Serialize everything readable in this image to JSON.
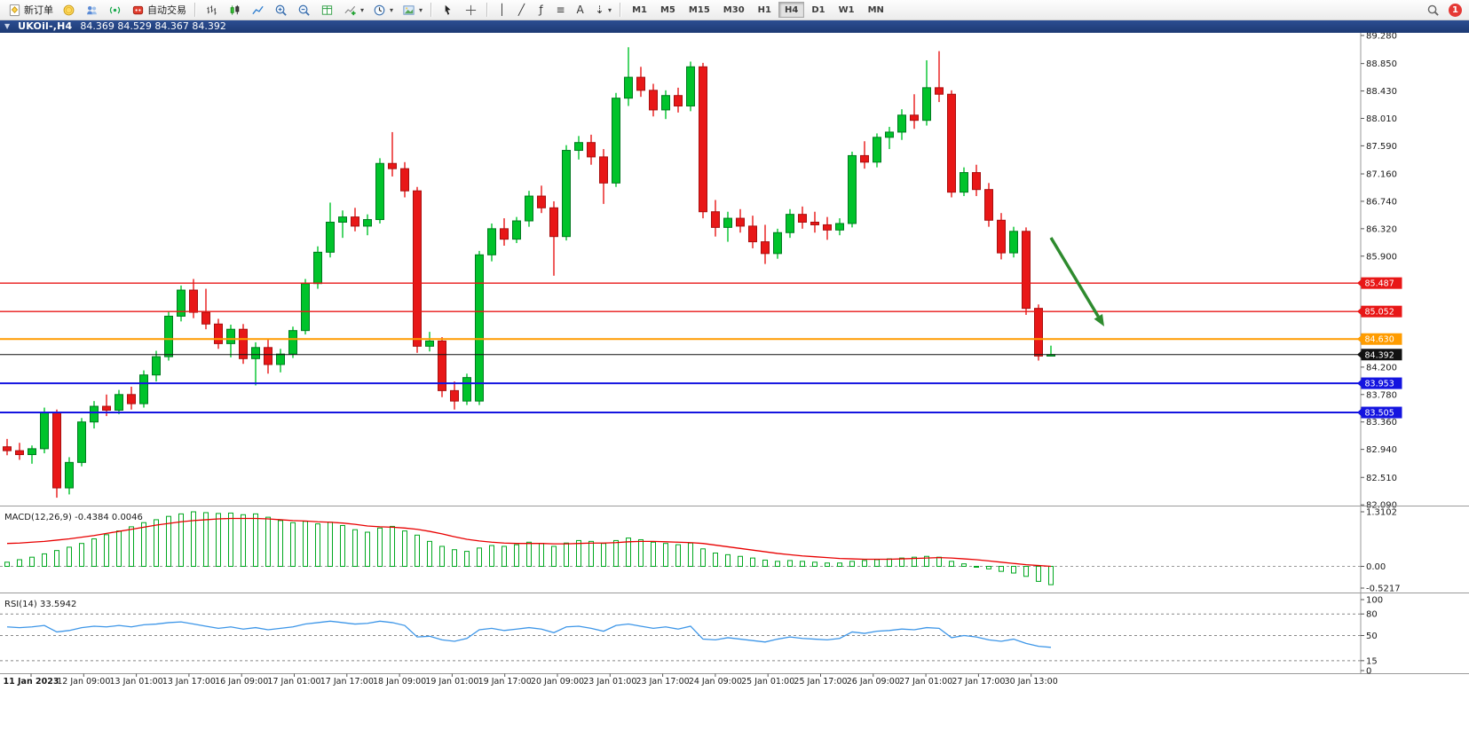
{
  "toolbar": {
    "timeframes": [
      "M1",
      "M5",
      "M15",
      "M30",
      "H1",
      "H4",
      "D1",
      "W1",
      "MN"
    ],
    "active_timeframe": "H4",
    "notification_count": "1",
    "sections": [
      {
        "items": [
          {
            "name": "new-order-button",
            "icon": "new-order-icon",
            "label": "新订单"
          },
          {
            "name": "market-watch-button",
            "icon": "coin-icon"
          },
          {
            "name": "accounts-button",
            "icon": "users-icon"
          },
          {
            "name": "signals-button",
            "icon": "signal-icon"
          },
          {
            "name": "autotrading-button",
            "icon": "autotrading-icon",
            "label": "自动交易"
          }
        ]
      },
      {
        "sep": true
      },
      {
        "items": [
          {
            "name": "bar-chart-button",
            "icon": "bars-icon"
          },
          {
            "name": "candlestick-chart-button",
            "icon": "candles-icon"
          },
          {
            "name": "line-chart-button",
            "icon": "linechart-icon"
          }
        ]
      },
      {
        "items": [
          {
            "name": "zoom-in-button",
            "icon": "zoom-in-icon"
          },
          {
            "name": "zoom-out-button",
            "icon": "zoom-out-icon"
          },
          {
            "name": "tile-windows-button",
            "icon": "grid-icon"
          }
        ]
      },
      {
        "items": [
          {
            "name": "indicators-button",
            "icon": "indicator-add-icon",
            "caret": true
          },
          {
            "name": "periods-button",
            "icon": "clock-icon",
            "caret": true
          },
          {
            "name": "templates-button",
            "icon": "template-icon",
            "caret": true
          }
        ]
      },
      {
        "sep": true
      },
      {
        "items": [
          {
            "name": "cursor-button",
            "icon": "cursor-icon"
          },
          {
            "name": "crosshair-button",
            "icon": "crosshair-icon"
          }
        ]
      },
      {
        "sep": true
      },
      {
        "items": [
          {
            "name": "vertical-line-button",
            "glyph": "│"
          },
          {
            "name": "trendline-button",
            "glyph": "╱"
          },
          {
            "name": "fibonacci-button",
            "glyph": "ƒ"
          },
          {
            "name": "channel-button",
            "glyph": "≡"
          },
          {
            "name": "text-button",
            "glyph": "A"
          },
          {
            "name": "arrows-button",
            "glyph": "⇣",
            "caret": true
          }
        ]
      },
      {
        "sep": true
      },
      {
        "timeframes": true
      },
      {
        "spacer": true
      },
      {
        "items": [
          {
            "name": "search-button",
            "icon": "search-icon"
          },
          {
            "name": "notifications-badge",
            "badge": true
          }
        ]
      }
    ]
  },
  "chart": {
    "title": {
      "symbol_period": "UKOil-,H4",
      "ohlc": "84.369 84.529 84.367 84.392"
    }
  },
  "chart_data": {
    "type": "candlestick",
    "symbol": "UKOil-",
    "timeframe": "H4",
    "current_ohlc": {
      "open": 84.369,
      "high": 84.529,
      "low": 84.367,
      "close": 84.392
    },
    "y_axis": {
      "min": 82.09,
      "max": 89.28,
      "gridline_labels": [
        "89.280",
        "88.850",
        "88.430",
        "88.010",
        "87.590",
        "87.160",
        "86.740",
        "86.320",
        "85.900",
        "84.200",
        "83.780",
        "83.360",
        "82.940",
        "82.510",
        "82.090"
      ]
    },
    "x_axis": {
      "labels": [
        "11 Jan 2023",
        "12 Jan 09:00",
        "13 Jan 01:00",
        "13 Jan 17:00",
        "16 Jan 09:00",
        "17 Jan 01:00",
        "17 Jan 17:00",
        "18 Jan 09:00",
        "19 Jan 01:00",
        "19 Jan 17:00",
        "20 Jan 09:00",
        "23 Jan 01:00",
        "23 Jan 17:00",
        "24 Jan 09:00",
        "25 Jan 01:00",
        "25 Jan 17:00",
        "26 Jan 09:00",
        "27 Jan 01:00",
        "27 Jan 17:00",
        "30 Jan 13:00"
      ]
    },
    "horizontal_lines": [
      {
        "label": "85.487",
        "price": 85.487,
        "color": "#e81717",
        "width": 1.4
      },
      {
        "label": "85.052",
        "price": 85.052,
        "color": "#e81717",
        "width": 1.4
      },
      {
        "label": "84.630",
        "price": 84.63,
        "color": "#ff9c00",
        "width": 2
      },
      {
        "label": "84.392",
        "price": 84.392,
        "color": "#111111",
        "width": 1
      },
      {
        "label": "83.953",
        "price": 83.953,
        "color": "#1414e0",
        "width": 2
      },
      {
        "label": "83.505",
        "price": 83.505,
        "color": "#1414e0",
        "width": 2
      }
    ],
    "candles": [
      [
        82.98,
        83.1,
        82.85,
        82.92
      ],
      [
        82.92,
        83.04,
        82.78,
        82.86
      ],
      [
        82.86,
        83.0,
        82.72,
        82.95
      ],
      [
        82.95,
        83.58,
        82.88,
        83.5
      ],
      [
        83.5,
        83.55,
        82.2,
        82.35
      ],
      [
        82.35,
        82.82,
        82.25,
        82.74
      ],
      [
        82.74,
        83.42,
        82.68,
        83.36
      ],
      [
        83.36,
        83.68,
        83.26,
        83.6
      ],
      [
        83.6,
        83.78,
        83.45,
        83.54
      ],
      [
        83.54,
        83.85,
        83.48,
        83.78
      ],
      [
        83.78,
        83.9,
        83.55,
        83.64
      ],
      [
        83.64,
        84.15,
        83.58,
        84.08
      ],
      [
        84.08,
        84.45,
        83.98,
        84.36
      ],
      [
        84.36,
        85.05,
        84.3,
        84.98
      ],
      [
        84.98,
        85.45,
        84.9,
        85.38
      ],
      [
        85.38,
        85.55,
        84.95,
        85.04
      ],
      [
        85.04,
        85.4,
        84.78,
        84.86
      ],
      [
        84.86,
        84.94,
        84.48,
        84.56
      ],
      [
        84.56,
        84.85,
        84.35,
        84.78
      ],
      [
        84.78,
        84.86,
        84.25,
        84.33
      ],
      [
        84.33,
        84.58,
        83.92,
        84.5
      ],
      [
        84.5,
        84.62,
        84.1,
        84.24
      ],
      [
        84.24,
        84.48,
        84.12,
        84.4
      ],
      [
        84.4,
        84.82,
        84.34,
        84.76
      ],
      [
        84.76,
        85.55,
        84.7,
        85.48
      ],
      [
        85.48,
        86.05,
        85.4,
        85.96
      ],
      [
        85.96,
        86.72,
        85.88,
        86.42
      ],
      [
        86.42,
        86.6,
        86.18,
        86.5
      ],
      [
        86.5,
        86.64,
        86.28,
        86.36
      ],
      [
        86.36,
        86.54,
        86.22,
        86.46
      ],
      [
        86.46,
        87.4,
        86.4,
        87.32
      ],
      [
        87.32,
        87.8,
        87.12,
        87.24
      ],
      [
        87.24,
        87.34,
        86.8,
        86.9
      ],
      [
        86.9,
        86.96,
        84.42,
        84.52
      ],
      [
        84.52,
        84.74,
        84.44,
        84.6
      ],
      [
        84.6,
        84.66,
        83.74,
        83.84
      ],
      [
        83.84,
        83.98,
        83.55,
        83.68
      ],
      [
        83.68,
        84.1,
        83.62,
        84.04
      ],
      [
        83.68,
        85.98,
        83.62,
        85.92
      ],
      [
        85.92,
        86.4,
        85.82,
        86.32
      ],
      [
        86.32,
        86.48,
        86.06,
        86.16
      ],
      [
        86.16,
        86.5,
        86.1,
        86.44
      ],
      [
        86.44,
        86.9,
        86.35,
        86.82
      ],
      [
        86.82,
        86.98,
        86.56,
        86.64
      ],
      [
        86.64,
        86.74,
        85.6,
        86.2
      ],
      [
        86.2,
        87.6,
        86.14,
        87.52
      ],
      [
        87.52,
        87.74,
        87.38,
        87.64
      ],
      [
        87.64,
        87.76,
        87.3,
        87.42
      ],
      [
        87.42,
        87.54,
        86.7,
        87.02
      ],
      [
        87.02,
        88.4,
        86.96,
        88.32
      ],
      [
        88.32,
        89.1,
        88.2,
        88.64
      ],
      [
        88.64,
        88.8,
        88.34,
        88.44
      ],
      [
        88.44,
        88.54,
        88.04,
        88.14
      ],
      [
        88.14,
        88.44,
        88.0,
        88.36
      ],
      [
        88.36,
        88.48,
        88.1,
        88.2
      ],
      [
        88.2,
        88.88,
        88.12,
        88.8
      ],
      [
        88.8,
        88.86,
        86.48,
        86.58
      ],
      [
        86.58,
        86.76,
        86.2,
        86.34
      ],
      [
        86.34,
        86.58,
        86.12,
        86.48
      ],
      [
        86.48,
        86.62,
        86.26,
        86.36
      ],
      [
        86.36,
        86.52,
        86.02,
        86.12
      ],
      [
        86.12,
        86.38,
        85.78,
        85.94
      ],
      [
        85.94,
        86.32,
        85.86,
        86.26
      ],
      [
        86.26,
        86.62,
        86.18,
        86.54
      ],
      [
        86.54,
        86.66,
        86.32,
        86.42
      ],
      [
        86.42,
        86.58,
        86.26,
        86.38
      ],
      [
        86.38,
        86.5,
        86.15,
        86.3
      ],
      [
        86.3,
        86.48,
        86.22,
        86.4
      ],
      [
        86.4,
        87.5,
        86.34,
        87.44
      ],
      [
        87.44,
        87.66,
        87.24,
        87.34
      ],
      [
        87.34,
        87.78,
        87.26,
        87.72
      ],
      [
        87.72,
        87.88,
        87.54,
        87.8
      ],
      [
        87.8,
        88.15,
        87.68,
        88.06
      ],
      [
        88.06,
        88.38,
        87.85,
        87.98
      ],
      [
        87.98,
        88.9,
        87.9,
        88.48
      ],
      [
        88.48,
        89.04,
        88.26,
        88.38
      ],
      [
        88.38,
        88.44,
        86.8,
        86.88
      ],
      [
        86.88,
        87.26,
        86.82,
        87.18
      ],
      [
        87.18,
        87.3,
        86.82,
        86.92
      ],
      [
        86.92,
        87.02,
        86.35,
        86.45
      ],
      [
        86.45,
        86.56,
        85.85,
        85.95
      ],
      [
        85.95,
        86.35,
        85.88,
        86.28
      ],
      [
        86.28,
        86.34,
        85.0,
        85.1
      ],
      [
        85.1,
        85.16,
        84.3,
        84.37
      ],
      [
        84.369,
        84.529,
        84.367,
        84.392
      ]
    ],
    "indicators": {
      "macd": {
        "label": "MACD(12,26,9)",
        "value_text": "-0.4384 0.0046",
        "axis_labels": [
          "1.3102",
          "0.00",
          "-0.5217"
        ],
        "histogram_color": "#00a81f",
        "signal_color": "#e80000",
        "histogram": [
          0.1,
          0.16,
          0.22,
          0.3,
          0.38,
          0.46,
          0.55,
          0.66,
          0.76,
          0.85,
          0.95,
          1.05,
          1.12,
          1.2,
          1.26,
          1.31,
          1.29,
          1.27,
          1.28,
          1.24,
          1.26,
          1.18,
          1.1,
          1.05,
          1.08,
          1.02,
          1.06,
          0.98,
          0.88,
          0.82,
          0.92,
          0.96,
          0.85,
          0.75,
          0.6,
          0.48,
          0.4,
          0.36,
          0.44,
          0.5,
          0.48,
          0.52,
          0.58,
          0.55,
          0.48,
          0.56,
          0.62,
          0.6,
          0.55,
          0.62,
          0.68,
          0.64,
          0.58,
          0.55,
          0.52,
          0.56,
          0.42,
          0.32,
          0.28,
          0.24,
          0.2,
          0.15,
          0.12,
          0.14,
          0.12,
          0.1,
          0.08,
          0.08,
          0.12,
          0.14,
          0.16,
          0.18,
          0.2,
          0.22,
          0.24,
          0.22,
          0.12,
          0.06,
          0.0,
          -0.06,
          -0.12,
          -0.16,
          -0.24,
          -0.36,
          -0.44
        ],
        "signal": [
          0.55,
          0.56,
          0.58,
          0.6,
          0.63,
          0.66,
          0.7,
          0.74,
          0.79,
          0.84,
          0.89,
          0.94,
          0.99,
          1.03,
          1.07,
          1.1,
          1.12,
          1.14,
          1.15,
          1.15,
          1.15,
          1.14,
          1.12,
          1.1,
          1.09,
          1.07,
          1.06,
          1.04,
          1.01,
          0.97,
          0.95,
          0.94,
          0.92,
          0.89,
          0.84,
          0.78,
          0.71,
          0.65,
          0.61,
          0.58,
          0.56,
          0.55,
          0.55,
          0.55,
          0.54,
          0.54,
          0.55,
          0.56,
          0.56,
          0.57,
          0.59,
          0.6,
          0.6,
          0.59,
          0.58,
          0.57,
          0.55,
          0.51,
          0.47,
          0.43,
          0.39,
          0.35,
          0.31,
          0.28,
          0.25,
          0.23,
          0.21,
          0.19,
          0.18,
          0.17,
          0.17,
          0.17,
          0.18,
          0.19,
          0.2,
          0.21,
          0.2,
          0.18,
          0.16,
          0.13,
          0.1,
          0.07,
          0.04,
          0.02,
          0.0
        ]
      },
      "rsi": {
        "label": "RSI(14)",
        "value_text": "33.5942",
        "levels": [
          80,
          50,
          15
        ],
        "axis_labels": [
          "100",
          "80",
          "50",
          "15",
          "0"
        ],
        "line_color": "#3d96e8",
        "values": [
          62,
          61,
          62,
          64,
          55,
          57,
          61,
          63,
          62,
          64,
          62,
          65,
          66,
          68,
          69,
          66,
          63,
          60,
          62,
          59,
          61,
          58,
          60,
          62,
          66,
          68,
          70,
          68,
          66,
          67,
          70,
          68,
          64,
          48,
          49,
          44,
          42,
          46,
          58,
          60,
          57,
          59,
          61,
          59,
          54,
          62,
          63,
          60,
          56,
          64,
          66,
          63,
          60,
          62,
          59,
          63,
          45,
          44,
          47,
          45,
          43,
          41,
          45,
          48,
          46,
          45,
          44,
          46,
          55,
          53,
          56,
          57,
          59,
          58,
          61,
          60,
          47,
          50,
          48,
          44,
          42,
          45,
          39,
          35,
          33.59
        ]
      }
    },
    "annotation_arrow": {
      "from": [
        1184,
        268
      ],
      "to": [
        1244,
        368
      ],
      "color": "#2e8b2e"
    },
    "colors": {
      "bull": "#00c32b",
      "bull_edge": "#007a1f",
      "bear": "#e81717",
      "bear_edge": "#a80f0f",
      "background": "#ffffff"
    }
  }
}
